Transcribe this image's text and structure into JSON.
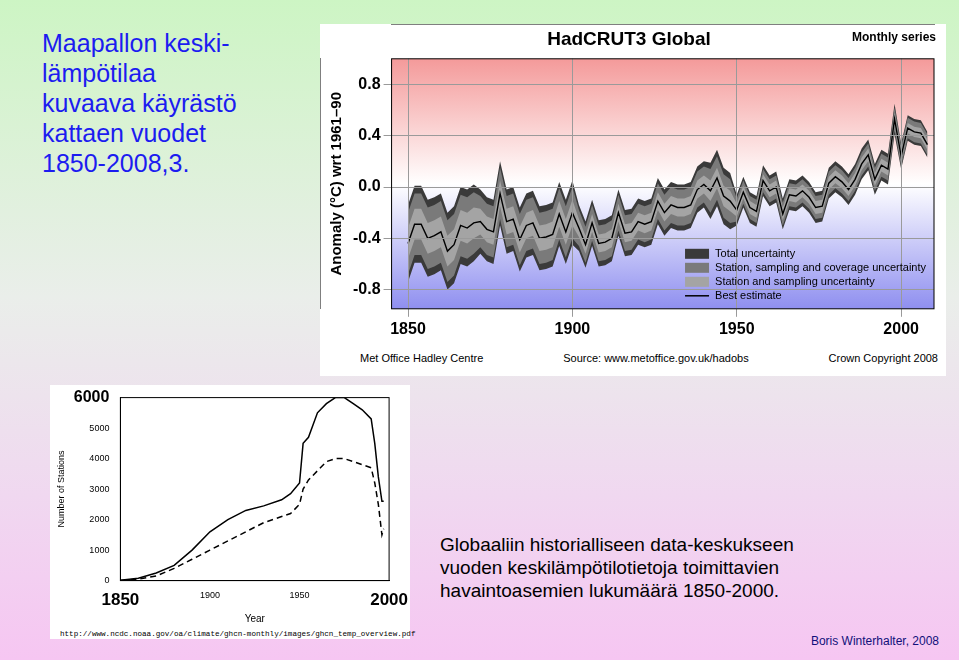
{
  "heading": [
    "Maapallon keski-",
    "lämpötilaa",
    "kuvaava käyrästö",
    "kattaen vuodet",
    "1850-2008,3."
  ],
  "caption": [
    "Globaaliin historialliseen data-keskukseen",
    "vuoden keskilämpötilotietoja toimittavien",
    "havaintoasemien lukumäärä 1850-2000."
  ],
  "author": "Boris Winterhalter, 2008",
  "chart_data": [
    {
      "type": "line",
      "title": "HadCRUT3 Global",
      "subtitle": "Monthly series",
      "y_label": "Anomaly (°C) wrt 1961–90",
      "annotations": [
        "Met Office Hadley Centre",
        "Source: www.metoffice.gov.uk/hadobs",
        "Crown Copyright 2008"
      ],
      "x": [
        1850,
        1852,
        1854,
        1856,
        1858,
        1860,
        1862,
        1864,
        1866,
        1868,
        1870,
        1872,
        1874,
        1876,
        1878,
        1880,
        1882,
        1884,
        1886,
        1888,
        1890,
        1892,
        1894,
        1896,
        1898,
        1900,
        1902,
        1904,
        1906,
        1908,
        1910,
        1912,
        1914,
        1916,
        1918,
        1920,
        1922,
        1924,
        1926,
        1928,
        1930,
        1932,
        1934,
        1936,
        1938,
        1940,
        1942,
        1944,
        1946,
        1948,
        1950,
        1952,
        1954,
        1956,
        1958,
        1960,
        1962,
        1964,
        1966,
        1968,
        1970,
        1972,
        1974,
        1976,
        1978,
        1980,
        1982,
        1984,
        1986,
        1988,
        1990,
        1992,
        1994,
        1996,
        1998,
        2000,
        2002,
        2004,
        2006,
        2008
      ],
      "series": [
        {
          "name": "Best estimate",
          "color": "#000000",
          "line_style": "solid",
          "values": [
            -0.44,
            -0.29,
            -0.29,
            -0.4,
            -0.38,
            -0.35,
            -0.5,
            -0.45,
            -0.3,
            -0.32,
            -0.28,
            -0.27,
            -0.33,
            -0.35,
            -0.05,
            -0.27,
            -0.25,
            -0.41,
            -0.3,
            -0.28,
            -0.4,
            -0.39,
            -0.37,
            -0.21,
            -0.35,
            -0.2,
            -0.32,
            -0.45,
            -0.28,
            -0.44,
            -0.43,
            -0.4,
            -0.2,
            -0.36,
            -0.35,
            -0.27,
            -0.29,
            -0.27,
            -0.11,
            -0.2,
            -0.14,
            -0.16,
            -0.16,
            -0.14,
            -0.02,
            0.02,
            -0.03,
            0.07,
            -0.07,
            -0.11,
            -0.18,
            -0.04,
            -0.16,
            -0.19,
            0.05,
            -0.03,
            0,
            -0.21,
            -0.06,
            -0.07,
            -0.03,
            -0.08,
            -0.16,
            -0.15,
            0.03,
            0.08,
            0.04,
            -0.02,
            0.06,
            0.18,
            0.25,
            0.06,
            0.17,
            0.14,
            0.53,
            0.24,
            0.46,
            0.43,
            0.42,
            0.33
          ],
          "uncertainty": [
            {
              "name": "Total uncertainty",
              "color": "#3a3a3a",
              "errors": [
                0.3,
                0.3,
                0.3,
                0.3,
                0.3,
                0.3,
                0.3,
                0.3,
                0.3,
                0.3,
                0.3,
                0.25,
                0.25,
                0.25,
                0.25,
                0.25,
                0.25,
                0.25,
                0.25,
                0.25,
                0.25,
                0.25,
                0.25,
                0.25,
                0.25,
                0.25,
                0.18,
                0.18,
                0.18,
                0.18,
                0.18,
                0.18,
                0.18,
                0.18,
                0.18,
                0.18,
                0.18,
                0.18,
                0.18,
                0.18,
                0.18,
                0.18,
                0.18,
                0.18,
                0.18,
                0.18,
                0.22,
                0.22,
                0.22,
                0.22,
                0.12,
                0.12,
                0.12,
                0.12,
                0.12,
                0.12,
                0.12,
                0.12,
                0.12,
                0.12,
                0.12,
                0.12,
                0.12,
                0.12,
                0.12,
                0.12,
                0.12,
                0.12,
                0.12,
                0.12,
                0.12,
                0.12,
                0.12,
                0.12,
                0.12,
                0.1,
                0.1,
                0.1,
                0.1,
                0.1
              ]
            },
            {
              "name": "Station, sampling and coverage uncertainty",
              "color": "#7a7a7a",
              "errors": [
                0.24,
                0.24,
                0.24,
                0.24,
                0.24,
                0.24,
                0.24,
                0.24,
                0.24,
                0.24,
                0.24,
                0.2,
                0.2,
                0.2,
                0.2,
                0.2,
                0.2,
                0.2,
                0.2,
                0.2,
                0.2,
                0.2,
                0.2,
                0.2,
                0.2,
                0.2,
                0.14,
                0.14,
                0.14,
                0.14,
                0.14,
                0.14,
                0.14,
                0.14,
                0.14,
                0.14,
                0.14,
                0.14,
                0.14,
                0.14,
                0.14,
                0.14,
                0.14,
                0.14,
                0.14,
                0.14,
                0.17,
                0.17,
                0.17,
                0.17,
                0.09,
                0.09,
                0.09,
                0.09,
                0.09,
                0.09,
                0.09,
                0.09,
                0.09,
                0.09,
                0.09,
                0.09,
                0.09,
                0.09,
                0.09,
                0.09,
                0.09,
                0.09,
                0.09,
                0.09,
                0.09,
                0.09,
                0.09,
                0.09,
                0.09,
                0.08,
                0.08,
                0.08,
                0.08,
                0.08
              ]
            },
            {
              "name": "Station and sampling uncertainty",
              "color": "#a4a4a4",
              "errors": [
                0.12,
                0.12,
                0.12,
                0.12,
                0.12,
                0.12,
                0.12,
                0.12,
                0.12,
                0.12,
                0.12,
                0.1,
                0.1,
                0.1,
                0.1,
                0.1,
                0.1,
                0.1,
                0.1,
                0.1,
                0.1,
                0.1,
                0.1,
                0.1,
                0.1,
                0.1,
                0.07,
                0.07,
                0.07,
                0.07,
                0.07,
                0.07,
                0.07,
                0.07,
                0.07,
                0.07,
                0.07,
                0.07,
                0.07,
                0.07,
                0.07,
                0.07,
                0.07,
                0.07,
                0.07,
                0.07,
                0.08,
                0.08,
                0.08,
                0.08,
                0.05,
                0.05,
                0.05,
                0.05,
                0.05,
                0.05,
                0.05,
                0.05,
                0.05,
                0.05,
                0.05,
                0.05,
                0.05,
                0.05,
                0.05,
                0.05,
                0.05,
                0.05,
                0.05,
                0.05,
                0.05,
                0.05,
                0.05,
                0.05,
                0.05,
                0.04,
                0.04,
                0.04,
                0.04,
                0.04
              ]
            }
          ]
        }
      ],
      "xlim": [
        1845,
        2010
      ],
      "xticks": [
        1850,
        1900,
        1950,
        2000
      ],
      "ylim": [
        -0.95,
        1.0
      ],
      "yticks": [
        -0.8,
        -0.4,
        {
          "value": 0,
          "label": "0.0"
        },
        0.4,
        0.8
      ],
      "grid": true,
      "legend": "lower right"
    },
    {
      "type": "line",
      "y_label": "Number of Stations",
      "x_label": "Year",
      "source": "http://www.ncdc.noaa.gov/oa/climate/ghcn-monthly/images/ghcn_temp_overview.pdf",
      "series": [
        {
          "color": "#000000",
          "line_style": "solid",
          "x": [
            1850,
            1860,
            1870,
            1880,
            1890,
            1900,
            1910,
            1920,
            1930,
            1940,
            1945,
            1950,
            1952,
            1955,
            1960,
            1965,
            1970,
            1975,
            1980,
            1985,
            1990,
            1992,
            1994,
            1996,
            1997
          ],
          "values": [
            10,
            80,
            250,
            500,
            1000,
            1600,
            2000,
            2300,
            2450,
            2650,
            2850,
            3200,
            4500,
            4700,
            5500,
            5800,
            6000,
            6000,
            5800,
            5600,
            5300,
            4500,
            3400,
            2600,
            2600
          ]
        },
        {
          "color": "#000000",
          "line_style": "dashed",
          "x": [
            1850,
            1860,
            1870,
            1880,
            1890,
            1900,
            1910,
            1920,
            1930,
            1940,
            1945,
            1950,
            1952,
            1955,
            1960,
            1965,
            1970,
            1975,
            1980,
            1985,
            1990,
            1992,
            1994,
            1996,
            1997
          ],
          "values": [
            5,
            50,
            150,
            400,
            700,
            1000,
            1300,
            1600,
            1900,
            2100,
            2200,
            2500,
            3000,
            3300,
            3600,
            3900,
            4000,
            4000,
            3900,
            3800,
            3700,
            3200,
            2500,
            1500,
            1700
          ]
        }
      ],
      "xlim": [
        1850,
        2000
      ],
      "xticks": [
        1850,
        1900,
        1950,
        2000
      ],
      "ylim": [
        0,
        6000
      ],
      "yticks": [
        0,
        1000,
        2000,
        3000,
        4000,
        5000,
        6000
      ],
      "grid": false
    }
  ]
}
